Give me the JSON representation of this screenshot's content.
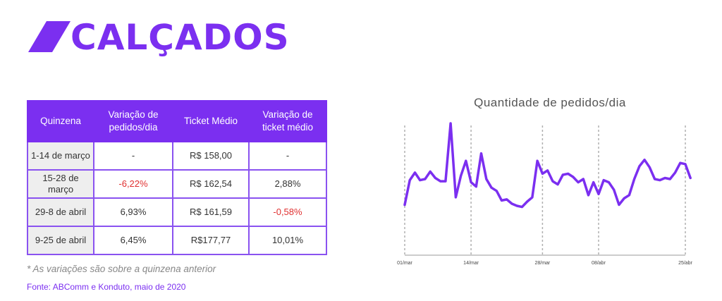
{
  "header": {
    "title": "CALÇADOS"
  },
  "colors": {
    "accent": "#7b2ff0",
    "negative": "#e03030",
    "first_col_bg": "#eeeeee"
  },
  "table": {
    "headers": [
      "Quinzena",
      "Variação de pedidos/dia",
      "Ticket Médio",
      "Variação de ticket médio"
    ],
    "rows": [
      {
        "period": "1-14 de março",
        "var_pedidos": "-",
        "ticket": "R$ 158,00",
        "var_ticket": "-"
      },
      {
        "period": "15-28 de março",
        "var_pedidos": "-6,22%",
        "ticket": "R$ 162,54",
        "var_ticket": "2,88%"
      },
      {
        "period": "29-8 de abril",
        "var_pedidos": "6,93%",
        "ticket": "R$ 161,59",
        "var_ticket": "-0,58%"
      },
      {
        "period": "9-25 de abril",
        "var_pedidos": "6,45%",
        "ticket": "R$177,77",
        "var_ticket": "10,01%"
      }
    ]
  },
  "footer": {
    "note": "* As variações são sobre a quinzena anterior",
    "source": "Fonte: ABComm e Konduto, maio de 2020"
  },
  "chart_data": {
    "type": "line",
    "title": "Quantidade de pedidos/dia",
    "xlabel": "",
    "ylabel": "",
    "x_tick_labels": [
      "01/mar",
      "14/mar",
      "28/mar",
      "08/abr",
      "25/abr"
    ],
    "x_tick_day_index": [
      0,
      13,
      27,
      38,
      55
    ],
    "y_axis_shown": false,
    "ylim": [
      0,
      100
    ],
    "grid": "dashed vertical lines at x ticks",
    "series": [
      {
        "name": "",
        "color": "#7b2ff0",
        "values": [
          24,
          47,
          54,
          47,
          48,
          55,
          49,
          46,
          46,
          100,
          31,
          51,
          65,
          45,
          41,
          72,
          48,
          40,
          37,
          28,
          29,
          25,
          23,
          22,
          27,
          31,
          65,
          53,
          56,
          46,
          43,
          52,
          53,
          50,
          45,
          48,
          33,
          45,
          34,
          47,
          45,
          38,
          24,
          30,
          33,
          48,
          60,
          66,
          59,
          48,
          47,
          49,
          48,
          54,
          63,
          62,
          49
        ]
      }
    ]
  }
}
